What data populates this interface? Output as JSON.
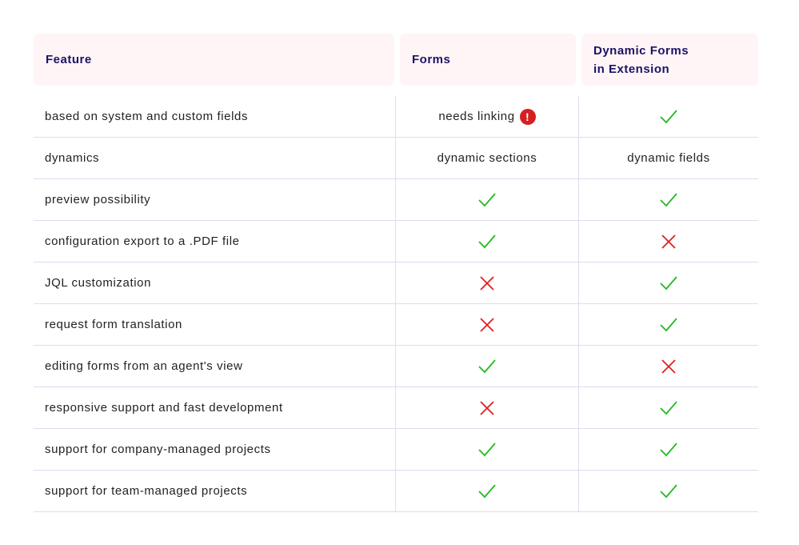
{
  "header": {
    "feature": "Feature",
    "forms": "Forms",
    "dynamic": "Dynamic Forms\nin Extension"
  },
  "colors": {
    "check": "#22bb22",
    "cross": "#e02020",
    "warning": "#d42020",
    "header_bg": "#fff5f6",
    "header_text": "#1a1466"
  },
  "rows": [
    {
      "feature": "based on system and custom fields",
      "forms": {
        "text": "needs linking",
        "icon": "warning-icon"
      },
      "dynamic": "check"
    },
    {
      "feature": "dynamics",
      "forms": {
        "text": "dynamic sections"
      },
      "dynamic": {
        "text": "dynamic fields"
      }
    },
    {
      "feature": "preview possibility",
      "forms": "check",
      "dynamic": "check"
    },
    {
      "feature": "configuration export to a .PDF file",
      "forms": "check",
      "dynamic": "cross"
    },
    {
      "feature": "JQL customization",
      "forms": "cross",
      "dynamic": "check"
    },
    {
      "feature": "request form translation",
      "forms": "cross",
      "dynamic": "check"
    },
    {
      "feature": "editing forms from an agent's view",
      "forms": "check",
      "dynamic": "cross"
    },
    {
      "feature": "responsive support and fast development",
      "forms": "cross",
      "dynamic": "check"
    },
    {
      "feature": "support for company-managed projects",
      "forms": "check",
      "dynamic": "check"
    },
    {
      "feature": "support for team-managed projects",
      "forms": "check",
      "dynamic": "check"
    }
  ]
}
